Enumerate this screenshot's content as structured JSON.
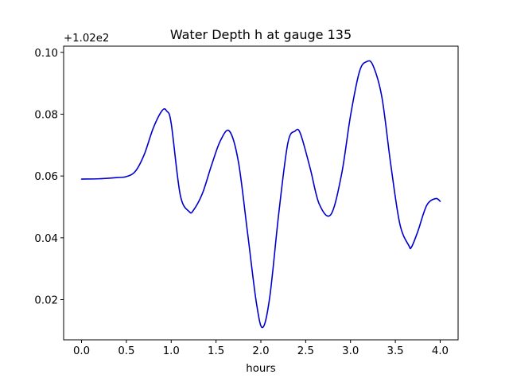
{
  "chart_data": {
    "type": "line",
    "title": "Water Depth h at gauge 135",
    "xlabel": "hours",
    "ylabel": "",
    "offset_label": "+1.02e2",
    "xlim": [
      -0.2,
      4.2
    ],
    "ylim": [
      0.007,
      0.102
    ],
    "xticks": [
      0.0,
      0.5,
      1.0,
      1.5,
      2.0,
      2.5,
      3.0,
      3.5,
      4.0
    ],
    "xtick_labels": [
      "0.0",
      "0.5",
      "1.0",
      "1.5",
      "2.0",
      "2.5",
      "3.0",
      "3.5",
      "4.0"
    ],
    "yticks": [
      0.02,
      0.04,
      0.06,
      0.08,
      0.1
    ],
    "ytick_labels": [
      "0.02",
      "0.04",
      "0.06",
      "0.08",
      "0.10"
    ],
    "grid": false,
    "series": [
      {
        "color": "#0000cc",
        "x": [
          0.0,
          0.2,
          0.4,
          0.5,
          0.6,
          0.7,
          0.8,
          0.9,
          0.95,
          1.0,
          1.1,
          1.2,
          1.25,
          1.35,
          1.45,
          1.55,
          1.65,
          1.75,
          1.85,
          1.95,
          2.02,
          2.1,
          2.2,
          2.3,
          2.38,
          2.44,
          2.55,
          2.65,
          2.78,
          2.9,
          3.0,
          3.1,
          3.18,
          3.25,
          3.35,
          3.45,
          3.55,
          3.65,
          3.68,
          3.75,
          3.85,
          3.95,
          4.0
        ],
        "y": [
          0.059,
          0.0591,
          0.0595,
          0.0598,
          0.0615,
          0.067,
          0.0755,
          0.0812,
          0.081,
          0.077,
          0.054,
          0.0485,
          0.049,
          0.0545,
          0.0635,
          0.0715,
          0.0745,
          0.0645,
          0.042,
          0.019,
          0.011,
          0.021,
          0.048,
          0.0705,
          0.0745,
          0.0738,
          0.0625,
          0.051,
          0.0475,
          0.0605,
          0.0795,
          0.0938,
          0.097,
          0.0958,
          0.0855,
          0.0635,
          0.0445,
          0.0375,
          0.037,
          0.042,
          0.0505,
          0.0527,
          0.0518
        ]
      }
    ]
  }
}
